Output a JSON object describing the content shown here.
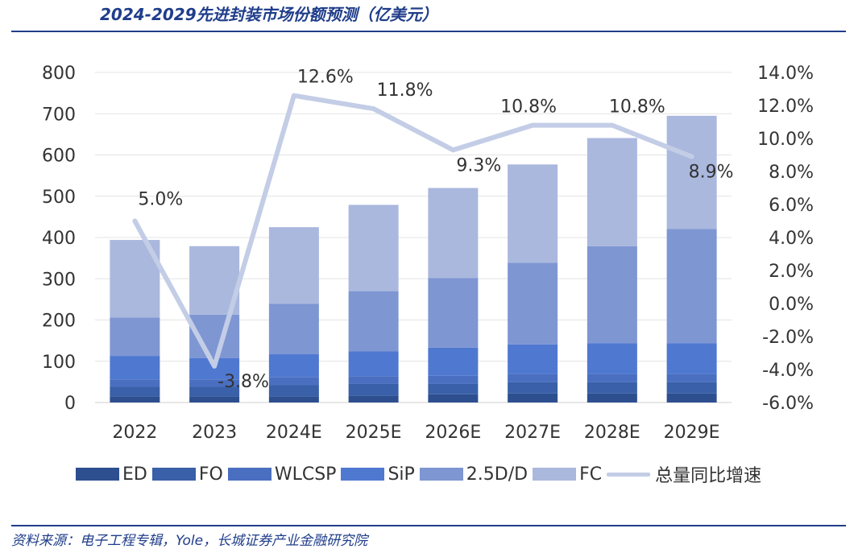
{
  "header": {
    "title": "2024-2029先进封装市场份额预测（亿美元）"
  },
  "footer": {
    "source": "资料来源：电子工程专辑，Yole，长城证券产业金融研究院"
  },
  "chart_data": {
    "type": "bar",
    "stacked": true,
    "categories": [
      "2022",
      "2023",
      "2024E",
      "2025E",
      "2026E",
      "2027E",
      "2028E",
      "2029E"
    ],
    "series": [
      {
        "name": "ED",
        "color": "#2e4f8f",
        "values": [
          15,
          15,
          15,
          17,
          20,
          22,
          22,
          22
        ]
      },
      {
        "name": "FO",
        "color": "#3960a8",
        "values": [
          23,
          23,
          27,
          28,
          25,
          27,
          27,
          27
        ]
      },
      {
        "name": "WLCSP",
        "color": "#4a6fc0",
        "values": [
          18,
          18,
          20,
          19,
          20,
          20,
          20,
          20
        ]
      },
      {
        "name": "SiP",
        "color": "#4f78d0",
        "values": [
          57,
          52,
          55,
          60,
          68,
          72,
          75,
          75
        ]
      },
      {
        "name": "2.5D/D",
        "color": "#7e96d2",
        "values": [
          93,
          105,
          122,
          146,
          169,
          198,
          235,
          277
        ]
      },
      {
        "name": "FC",
        "color": "#aab8de",
        "values": [
          188,
          166,
          186,
          209,
          218,
          238,
          262,
          274
        ]
      }
    ],
    "line": {
      "name": "总量同比增速",
      "color": "#c3cde6",
      "values": [
        5.0,
        -3.8,
        12.6,
        11.8,
        9.3,
        10.8,
        10.8,
        8.9
      ],
      "labels": [
        "5.0%",
        "-3.8%",
        "12.6%",
        "11.8%",
        "9.3%",
        "10.8%",
        "10.8%",
        "8.9%"
      ]
    },
    "y_left": {
      "min": 0,
      "max": 800,
      "ticks": [
        "0",
        "100",
        "200",
        "300",
        "400",
        "500",
        "600",
        "700",
        "800"
      ]
    },
    "y_right": {
      "min": -6,
      "max": 14,
      "ticks": [
        "-6.0%",
        "-4.0%",
        "-2.0%",
        "0.0%",
        "2.0%",
        "4.0%",
        "6.0%",
        "8.0%",
        "10.0%",
        "12.0%",
        "14.0%"
      ]
    },
    "grid": true,
    "legend_position": "bottom"
  }
}
